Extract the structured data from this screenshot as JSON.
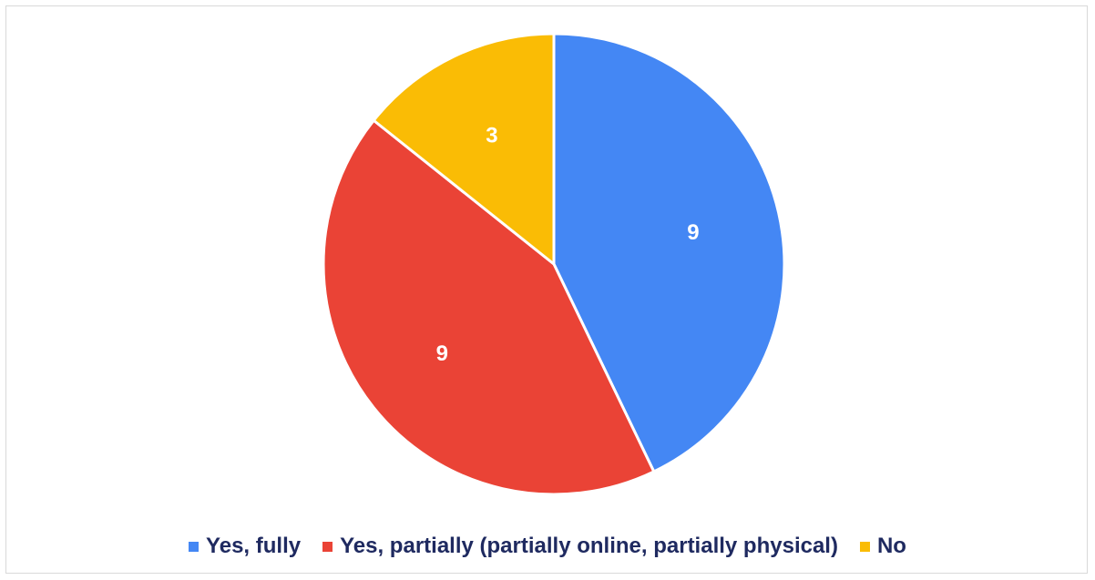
{
  "chart_data": {
    "type": "pie",
    "title": "",
    "labels": [
      "Yes, fully",
      "Yes, partially (partially online, partially physical)",
      "No"
    ],
    "values": [
      9,
      9,
      3
    ],
    "data_labels": [
      "9",
      "9",
      "3"
    ],
    "colors": [
      "#4487f4",
      "#ea4336",
      "#fabc05"
    ],
    "legend_position": "bottom"
  }
}
